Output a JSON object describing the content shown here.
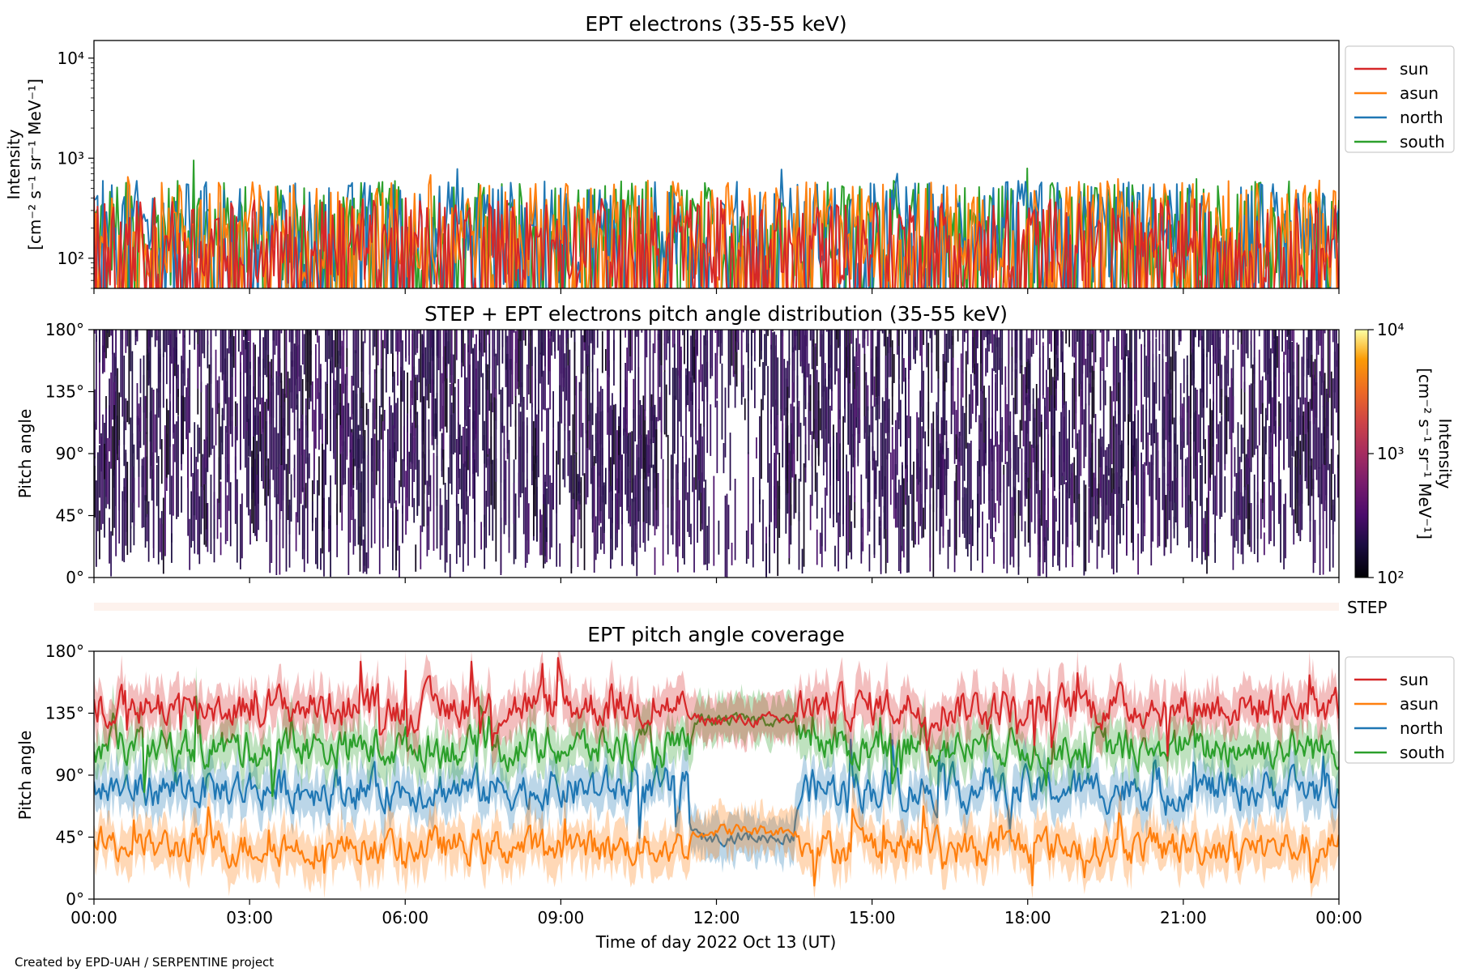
{
  "credit": "Created by EPD-UAH / SERPENTINE project",
  "colors": {
    "sun": "#d62728",
    "asun": "#ff7f0e",
    "north": "#1f77b4",
    "south": "#2ca02c",
    "step_band": "#fdf2ed"
  },
  "chart_data": [
    {
      "type": "line",
      "title": "EPT electrons (35-55 keV)",
      "ylabel_line1": "Intensity",
      "ylabel_line2": "[cm⁻² s⁻¹ sr⁻¹ MeV⁻¹]",
      "yscale": "log",
      "ylim": [
        50,
        15000
      ],
      "yticks": [
        {
          "value": 100,
          "label": "10²"
        },
        {
          "value": 1000,
          "label": "10³"
        },
        {
          "value": 10000,
          "label": "10⁴"
        }
      ],
      "xlim": [
        "2022-10-13T00:00",
        "2022-10-14T00:00"
      ],
      "legend_position": "outside-right-top",
      "series": [
        {
          "name": "sun",
          "color": "#d62728",
          "typical_range": [
            50,
            400
          ],
          "peaks": [
            {
              "x": "00:00",
              "y": 420
            },
            {
              "x": "12:00",
              "y": 400
            }
          ]
        },
        {
          "name": "asun",
          "color": "#ff7f0e",
          "typical_range": [
            50,
            600
          ],
          "peaks": [
            {
              "x": "00:40",
              "y": 650
            },
            {
              "x": "06:30",
              "y": 680
            },
            {
              "x": "19:45",
              "y": 620
            }
          ]
        },
        {
          "name": "north",
          "color": "#1f77b4",
          "typical_range": [
            50,
            600
          ],
          "peaks": [
            {
              "x": "07:00",
              "y": 780
            },
            {
              "x": "13:15",
              "y": 770
            },
            {
              "x": "15:30",
              "y": 700
            }
          ]
        },
        {
          "name": "south",
          "color": "#2ca02c",
          "typical_range": [
            50,
            600
          ],
          "peaks": [
            {
              "x": "01:55",
              "y": 950
            },
            {
              "x": "18:00",
              "y": 790
            },
            {
              "x": "21:15",
              "y": 620
            }
          ]
        }
      ]
    },
    {
      "type": "heatmap",
      "title": "STEP + EPT electrons pitch angle distribution (35-55 keV)",
      "ylabel": "Pitch angle",
      "ylim": [
        0,
        180
      ],
      "yticks": [
        "0°",
        "45°",
        "90°",
        "135°",
        "180°"
      ],
      "colorbar": {
        "label_line1": "Intensity",
        "label_line2": "[cm⁻² s⁻¹ sr⁻¹ MeV⁻¹]",
        "scale": "log",
        "range": [
          100,
          10000
        ],
        "ticks": [
          "10²",
          "10³",
          "10⁴"
        ],
        "colormap": "inferno"
      },
      "values_range": [
        100,
        400
      ],
      "sparse_interval": {
        "x_start": "11:50",
        "x_end": "13:00",
        "y_range": [
          60,
          120
        ]
      }
    },
    {
      "type": "area",
      "label": "STEP",
      "note": "empty band"
    },
    {
      "type": "line",
      "title": "EPT pitch angle coverage",
      "ylabel": "Pitch angle",
      "xlabel": "Time of day 2022 Oct 13 (UT)",
      "ylim": [
        0,
        180
      ],
      "yticks": [
        "0°",
        "45°",
        "90°",
        "135°",
        "180°"
      ],
      "xticks": [
        "00:00",
        "03:00",
        "06:00",
        "09:00",
        "12:00",
        "15:00",
        "18:00",
        "21:00",
        "00:00"
      ],
      "legend_position": "outside-right-top",
      "series": [
        {
          "name": "sun",
          "color": "#d62728",
          "mean_angle": 140,
          "spread": 25
        },
        {
          "name": "asun",
          "color": "#ff7f0e",
          "mean_angle": 38,
          "spread": 22
        },
        {
          "name": "north",
          "color": "#1f77b4",
          "mean_angle": 80,
          "spread": 25
        },
        {
          "name": "south",
          "color": "#2ca02c",
          "mean_angle": 110,
          "spread": 25
        }
      ],
      "calm_interval": {
        "x_start": "11:30",
        "x_end": "13:30",
        "sun": 130,
        "south": 130,
        "north": 45,
        "asun": 50
      }
    }
  ]
}
